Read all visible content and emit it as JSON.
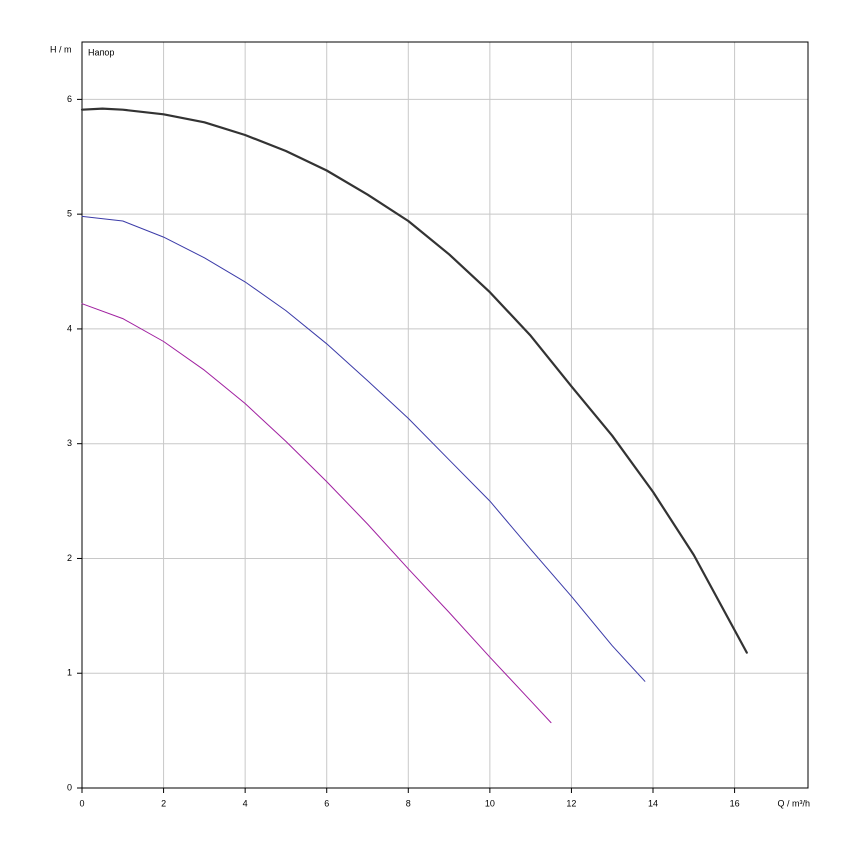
{
  "chart_data": {
    "type": "line",
    "title": "Напор",
    "ylabel": "H / m",
    "xlabel": "Q / m³/h",
    "xlim": [
      0,
      17.8
    ],
    "xticks": [
      0,
      2,
      4,
      6,
      8,
      10,
      12,
      14,
      16
    ],
    "ylim": [
      0,
      6.5
    ],
    "yticks": [
      0,
      1,
      2,
      3,
      4,
      5,
      6
    ],
    "grid": true,
    "series": [
      {
        "color": "#333333",
        "width": 2.2,
        "x": [
          0,
          0.5,
          1,
          2,
          3,
          4,
          5,
          6,
          7,
          8,
          9,
          10,
          11,
          12,
          13,
          14,
          15,
          16.3
        ],
        "values": [
          5.91,
          5.92,
          5.91,
          5.87,
          5.8,
          5.69,
          5.55,
          5.38,
          5.17,
          4.94,
          4.65,
          4.32,
          3.94,
          3.5,
          3.07,
          2.58,
          2.03,
          1.18
        ]
      },
      {
        "color": "#3b3ba8",
        "width": 1,
        "x": [
          0,
          1,
          2,
          3,
          4,
          5,
          6,
          7,
          8,
          9,
          10,
          11,
          12,
          13,
          13.8
        ],
        "values": [
          4.98,
          4.94,
          4.8,
          4.62,
          4.41,
          4.16,
          3.87,
          3.55,
          3.22,
          2.86,
          2.5,
          2.08,
          1.67,
          1.24,
          0.93
        ]
      },
      {
        "color": "#a020a0",
        "width": 1,
        "x": [
          0,
          1,
          2,
          3,
          4,
          5,
          6,
          7,
          8,
          9,
          10,
          11,
          11.5
        ],
        "values": [
          4.22,
          4.09,
          3.89,
          3.64,
          3.35,
          3.02,
          2.67,
          2.3,
          1.91,
          1.53,
          1.14,
          0.76,
          0.57
        ]
      }
    ]
  }
}
